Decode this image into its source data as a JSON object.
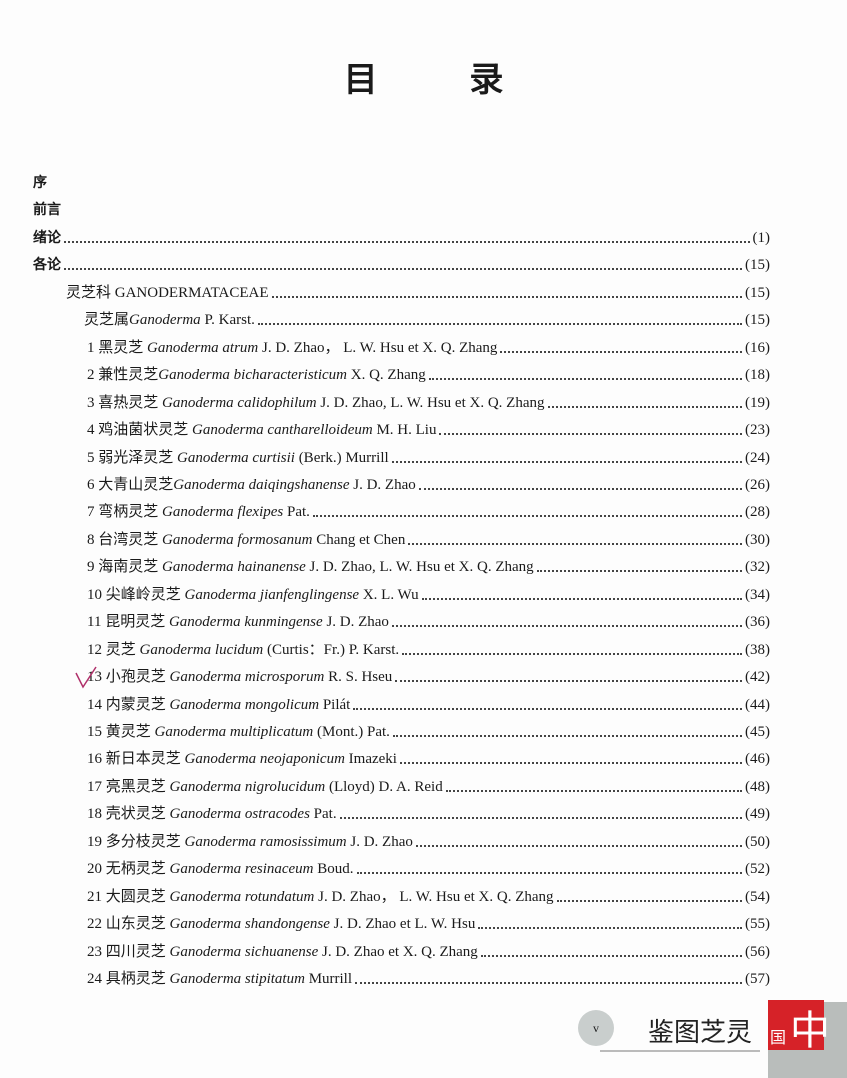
{
  "title": "目 录",
  "entries": [
    {
      "level": 0,
      "text": "序",
      "page": ""
    },
    {
      "level": 0,
      "text": "前言",
      "page": ""
    },
    {
      "level": 0,
      "text": "绪论",
      "page": "(1)"
    },
    {
      "level": 0,
      "text": "各论",
      "page": "(15)"
    },
    {
      "level": 1,
      "cn": "灵芝科 GANODERMATACEAE",
      "latin": "",
      "author": "",
      "page": "(15)"
    },
    {
      "level": 2,
      "cn": "灵芝属",
      "latin": "Ganoderma",
      "author": " P. Karst.",
      "page": "(15)"
    },
    {
      "level": 3,
      "cn": "1 黑灵芝 ",
      "latin": "Ganoderma atrum",
      "author": " J. D. Zhao， L. W. Hsu et X. Q. Zhang",
      "page": "(16)"
    },
    {
      "level": 3,
      "cn": "2 兼性灵芝",
      "latin": "Ganoderma bicharacteristicum",
      "author": " X. Q. Zhang",
      "page": "(18)"
    },
    {
      "level": 3,
      "cn": "3 喜热灵芝 ",
      "latin": "Ganoderma calidophilum",
      "author": " J. D. Zhao, L. W. Hsu et X. Q. Zhang",
      "page": "(19)"
    },
    {
      "level": 3,
      "cn": "4 鸡油菌状灵芝 ",
      "latin": "Ganoderma cantharelloideum",
      "author": " M. H. Liu",
      "page": "(23)"
    },
    {
      "level": 3,
      "cn": "5 弱光泽灵芝 ",
      "latin": "Ganoderma curtisii",
      "author": " (Berk.) Murrill",
      "page": "(24)"
    },
    {
      "level": 3,
      "cn": "6 大青山灵芝",
      "latin": "Ganoderma daiqingshanense",
      "author": " J. D. Zhao",
      "page": "(26)"
    },
    {
      "level": 3,
      "cn": "7 弯柄灵芝 ",
      "latin": "Ganoderma flexipes",
      "author": " Pat.",
      "page": "(28)"
    },
    {
      "level": 3,
      "cn": "8 台湾灵芝 ",
      "latin": "Ganoderma formosanum",
      "author": " Chang et Chen",
      "page": "(30)"
    },
    {
      "level": 3,
      "cn": "9 海南灵芝 ",
      "latin": "Ganoderma hainanense",
      "author": " J. D. Zhao, L. W. Hsu et X. Q. Zhang",
      "page": "(32)"
    },
    {
      "level": 3,
      "cn": "10 尖峰岭灵芝 ",
      "latin": "Ganoderma jianfenglingense",
      "author": " X. L. Wu",
      "page": "(34)"
    },
    {
      "level": 3,
      "cn": "11 昆明灵芝 ",
      "latin": "Ganoderma kunmingense",
      "author": " J. D. Zhao",
      "page": "(36)"
    },
    {
      "level": 3,
      "cn": "12 灵芝 ",
      "latin": "Ganoderma lucidum",
      "author": " (Curtis：Fr.) P. Karst.",
      "page": "(38)"
    },
    {
      "level": 3,
      "cn": "13 小孢灵芝 ",
      "latin": "Ganoderma microsporum",
      "author": " R. S. Hseu",
      "page": "(42)"
    },
    {
      "level": 3,
      "cn": "14 内蒙灵芝 ",
      "latin": "Ganoderma mongolicum",
      "author": " Pilát",
      "page": "(44)"
    },
    {
      "level": 3,
      "cn": "15 黄灵芝 ",
      "latin": "Ganoderma multiplicatum",
      "author": " (Mont.) Pat.",
      "page": "(45)"
    },
    {
      "level": 3,
      "cn": "16 新日本灵芝 ",
      "latin": "Ganoderma neojaponicum",
      "author": " Imazeki",
      "page": "(46)"
    },
    {
      "level": 3,
      "cn": "17 亮黑灵芝 ",
      "latin": "Ganoderma nigrolucidum",
      "author": " (Lloyd) D. A. Reid",
      "page": "(48)"
    },
    {
      "level": 3,
      "cn": "18 壳状灵芝 ",
      "latin": "Ganoderma ostracodes",
      "author": " Pat.",
      "page": "(49)"
    },
    {
      "level": 3,
      "cn": "19 多分枝灵芝 ",
      "latin": "Ganoderma ramosissimum",
      "author": " J. D. Zhao",
      "page": "(50)"
    },
    {
      "level": 3,
      "cn": "20 无柄灵芝 ",
      "latin": "Ganoderma resinaceum",
      "author": " Boud.",
      "page": "(52)"
    },
    {
      "level": 3,
      "cn": "21 大圆灵芝 ",
      "latin": "Ganoderma rotundatum",
      "author": " J. D. Zhao， L. W. Hsu et X. Q. Zhang",
      "page": "(54)"
    },
    {
      "level": 3,
      "cn": "22 山东灵芝 ",
      "latin": "Ganoderma shandongense",
      "author": " J. D. Zhao et L. W. Hsu",
      "page": "(55)"
    },
    {
      "level": 3,
      "cn": "23 四川灵芝 ",
      "latin": "Ganoderma sichuanense",
      "author": " J. D. Zhao et X. Q. Zhang",
      "page": "(56)"
    },
    {
      "level": 3,
      "cn": "24 具柄灵芝 ",
      "latin": "Ganoderma stipitatum",
      "author": " Murrill",
      "page": "(57)"
    }
  ],
  "footer": {
    "page_number": "v",
    "brand": "鉴图芝灵",
    "brand_red_small": "国",
    "brand_red_big": "中"
  },
  "colors": {
    "brand_red": "#d62228",
    "check_mark": "#b0306a"
  }
}
